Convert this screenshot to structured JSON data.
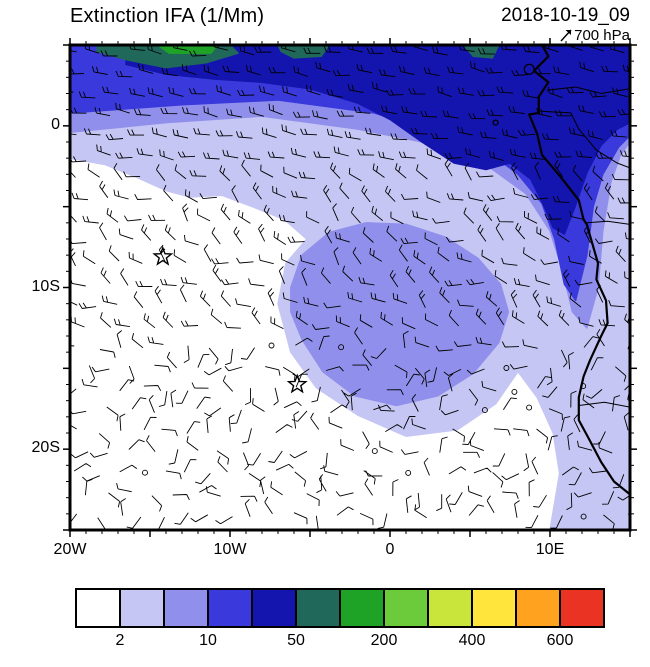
{
  "header": {
    "title": "Extinction IFA (1/Mm)",
    "datetime": "2018-10-19_09",
    "level": "700 hPa"
  },
  "axes": {
    "y_ticks": [
      {
        "label": "0",
        "lat": 0
      },
      {
        "label": "10S",
        "lat": -10
      },
      {
        "label": "20S",
        "lat": -20
      }
    ],
    "x_ticks": [
      {
        "label": "20W",
        "lon": -20
      },
      {
        "label": "10W",
        "lon": -10
      },
      {
        "label": "0",
        "lon": 0
      },
      {
        "label": "10E",
        "lon": 10
      }
    ]
  },
  "colorbar": {
    "colors": [
      "#FFFFFF",
      "#C6C6F4",
      "#9090EC",
      "#3939DC",
      "#1414AE",
      "#20695A",
      "#1FA326",
      "#6BCB3A",
      "#C9E43B",
      "#FFE53C",
      "#FFA21F",
      "#EA3323"
    ],
    "boundaries": [
      2,
      5,
      10,
      25,
      50,
      100,
      200,
      300,
      400,
      500,
      600
    ],
    "ticks": [
      {
        "label": "2",
        "boundary": 1
      },
      {
        "label": "10",
        "boundary": 3
      },
      {
        "label": "50",
        "boundary": 5
      },
      {
        "label": "200",
        "boundary": 7
      },
      {
        "label": "400",
        "boundary": 9
      },
      {
        "label": "600",
        "boundary": 11
      }
    ]
  },
  "chart_data": {
    "type": "heatmap",
    "title": "Extinction IFA (1/Mm)",
    "valid_time": "2018-10-19_09",
    "pressure_level": "700 hPa",
    "units": "1/Mm",
    "lon_range": [
      -20,
      15
    ],
    "lat_range": [
      -25,
      5
    ],
    "contour_levels": [
      2,
      5,
      10,
      25,
      50,
      100,
      200,
      300,
      400,
      500,
      600
    ],
    "regions": [
      {
        "range": "2-5",
        "color_index": 1,
        "points": [
          [
            -20,
            5
          ],
          [
            15,
            5
          ],
          [
            15,
            -25
          ],
          [
            10,
            -25
          ],
          [
            10.6,
            -21.5
          ],
          [
            10.2,
            -19
          ],
          [
            9.2,
            -16.8
          ],
          [
            8,
            -15.2
          ],
          [
            6.6,
            -17.2
          ],
          [
            4.2,
            -18.8
          ],
          [
            1,
            -19.2
          ],
          [
            -2,
            -17.9
          ],
          [
            -4.6,
            -16.2
          ],
          [
            -6.2,
            -14
          ],
          [
            -7,
            -11
          ],
          [
            -6.5,
            -8.5
          ],
          [
            -5.2,
            -7
          ],
          [
            -6.6,
            -5.8
          ],
          [
            -8.6,
            -5
          ],
          [
            -10.5,
            -4.3
          ],
          [
            -12.5,
            -4.4
          ],
          [
            -14,
            -4
          ],
          [
            -15.8,
            -3.2
          ],
          [
            -17.8,
            -2.4
          ],
          [
            -20,
            -2
          ]
        ]
      },
      {
        "range": "5-10",
        "color_index": 2,
        "points": [
          [
            -20,
            -0.4
          ],
          [
            -14,
            0.2
          ],
          [
            -8,
            0.6
          ],
          [
            -2,
            -0.2
          ],
          [
            3,
            -1.2
          ],
          [
            6,
            -2.4
          ],
          [
            8.5,
            -4.2
          ],
          [
            10,
            -6.5
          ],
          [
            10.8,
            -9
          ],
          [
            11.4,
            -11.5
          ],
          [
            12.3,
            -12.5
          ],
          [
            13,
            -10
          ],
          [
            13.3,
            -6.5
          ],
          [
            13.8,
            -3.5
          ],
          [
            14.4,
            -1.8
          ],
          [
            15,
            -1
          ],
          [
            15,
            5
          ],
          [
            -20,
            5
          ]
        ]
      },
      {
        "range": "5-10",
        "color_index": 2,
        "points": [
          [
            -6.2,
            -10
          ],
          [
            -5.5,
            -8
          ],
          [
            -3.8,
            -6.6
          ],
          [
            -1.5,
            -6
          ],
          [
            1,
            -6.1
          ],
          [
            3.5,
            -6.9
          ],
          [
            5.5,
            -8.2
          ],
          [
            6.9,
            -9.8
          ],
          [
            7.4,
            -11.5
          ],
          [
            6.8,
            -13.4
          ],
          [
            5.2,
            -15.3
          ],
          [
            3,
            -16.7
          ],
          [
            0.4,
            -17.3
          ],
          [
            -2.2,
            -16.7
          ],
          [
            -4.2,
            -15.2
          ],
          [
            -5.5,
            -13.2
          ],
          [
            -6.2,
            -11.5
          ]
        ]
      },
      {
        "range": "10-25",
        "color_index": 3,
        "points": [
          [
            -20,
            0.8
          ],
          [
            -13,
            1.3
          ],
          [
            -7,
            1.6
          ],
          [
            -1,
            0.8
          ],
          [
            3,
            -0.4
          ],
          [
            6,
            -1.5
          ],
          [
            8,
            -3
          ],
          [
            9.5,
            -4.8
          ],
          [
            10.3,
            -7
          ],
          [
            10.9,
            -9.8
          ],
          [
            11.6,
            -10.8
          ],
          [
            12.3,
            -8
          ],
          [
            12.7,
            -5
          ],
          [
            13.3,
            -3
          ],
          [
            14.3,
            -1.3
          ],
          [
            15,
            -0.6
          ],
          [
            15,
            5
          ],
          [
            -20,
            5
          ]
        ]
      },
      {
        "range": "25-50",
        "color_index": 4,
        "points": [
          [
            -16.5,
            3.8
          ],
          [
            -14,
            3.2
          ],
          [
            -11,
            2.9
          ],
          [
            -8,
            2.7
          ],
          [
            -5,
            2.3
          ],
          [
            -2,
            1.4
          ],
          [
            0,
            0.4
          ],
          [
            2,
            -1
          ],
          [
            4,
            -2.3
          ],
          [
            6,
            -2.7
          ],
          [
            7.5,
            -2.3
          ],
          [
            8.8,
            -3.3
          ],
          [
            9.6,
            -4.9
          ],
          [
            10.2,
            -6.3
          ],
          [
            10.9,
            -6.7
          ],
          [
            11.6,
            -4.9
          ],
          [
            12.3,
            -2.9
          ],
          [
            13.2,
            -1.2
          ],
          [
            14.2,
            -0.2
          ],
          [
            15,
            0.2
          ],
          [
            15,
            5
          ],
          [
            -16.5,
            5
          ]
        ]
      },
      {
        "range": "50-100",
        "color_index": 5,
        "points": [
          [
            -18.3,
            5
          ],
          [
            -10,
            5
          ],
          [
            -9.5,
            4.5
          ],
          [
            -11.5,
            3.9
          ],
          [
            -14,
            3.6
          ],
          [
            -16.5,
            4.1
          ],
          [
            -18.3,
            4.6
          ]
        ]
      },
      {
        "range": "50-100",
        "color_index": 5,
        "points": [
          [
            -7,
            5
          ],
          [
            -3.8,
            5
          ],
          [
            -4.3,
            4.3
          ],
          [
            -6,
            4.2
          ],
          [
            -6.8,
            4.6
          ]
        ]
      },
      {
        "range": "50-100",
        "color_index": 5,
        "points": [
          [
            4.6,
            5
          ],
          [
            6.8,
            5
          ],
          [
            6.4,
            4.2
          ],
          [
            5.2,
            4.3
          ]
        ]
      },
      {
        "range": "100-200",
        "color_index": 6,
        "points": [
          [
            -14.5,
            5
          ],
          [
            -10.8,
            5
          ],
          [
            -11.2,
            4.5
          ],
          [
            -13.8,
            4.5
          ]
        ]
      }
    ],
    "coastline": [
      [
        9.5,
        5
      ],
      [
        9.9,
        4.3
      ],
      [
        9,
        3.4
      ],
      [
        9.9,
        2.7
      ],
      [
        9.3,
        1.8
      ],
      [
        9.3,
        0.8
      ],
      [
        8.7,
        0.7
      ],
      [
        9.2,
        -0.5
      ],
      [
        9.5,
        -1.8
      ],
      [
        10.7,
        -3.2
      ],
      [
        11.8,
        -4.6
      ],
      [
        12.1,
        -5.8
      ],
      [
        12.3,
        -6.1
      ],
      [
        13,
        -8.5
      ],
      [
        12.9,
        -9.5
      ],
      [
        13.5,
        -10.8
      ],
      [
        13.6,
        -12.2
      ],
      [
        13.2,
        -13
      ],
      [
        12.5,
        -14.5
      ],
      [
        12.1,
        -15.5
      ],
      [
        11.8,
        -16.8
      ],
      [
        11.8,
        -18.2
      ],
      [
        12.4,
        -19.3
      ],
      [
        13.2,
        -20.8
      ],
      [
        14,
        -22
      ],
      [
        15,
        -22.8
      ]
    ],
    "borders": [
      [
        [
          12.3,
          -6
        ],
        [
          13.6,
          -5.9
        ],
        [
          15,
          -6.1
        ]
      ],
      [
        [
          11.8,
          -17.3
        ],
        [
          13.4,
          -17.1
        ],
        [
          15,
          -17.4
        ]
      ],
      [
        [
          9.8,
          2.2
        ],
        [
          11.6,
          2.4
        ],
        [
          13.2,
          2
        ],
        [
          15,
          2.3
        ]
      ],
      [
        [
          9.4,
          0.9
        ],
        [
          11.3,
          0.8
        ],
        [
          11.8,
          -0.2
        ],
        [
          12.9,
          -1.5
        ],
        [
          14.2,
          -2.3
        ],
        [
          15,
          -2.6
        ]
      ]
    ],
    "islands": [
      {
        "lon": 8.7,
        "lat": 3.5,
        "r": 5
      },
      {
        "lon": 6.6,
        "lat": 0.2,
        "r": 2.5
      }
    ],
    "markers": [
      {
        "type": "star",
        "lon": -14.2,
        "lat": -8.1
      },
      {
        "type": "star",
        "lon": -5.8,
        "lat": -16
      }
    ],
    "wind": {
      "style": "barbs",
      "note": "700 hPa wind barbs over full domain, strongest easterly flow in the north"
    }
  }
}
